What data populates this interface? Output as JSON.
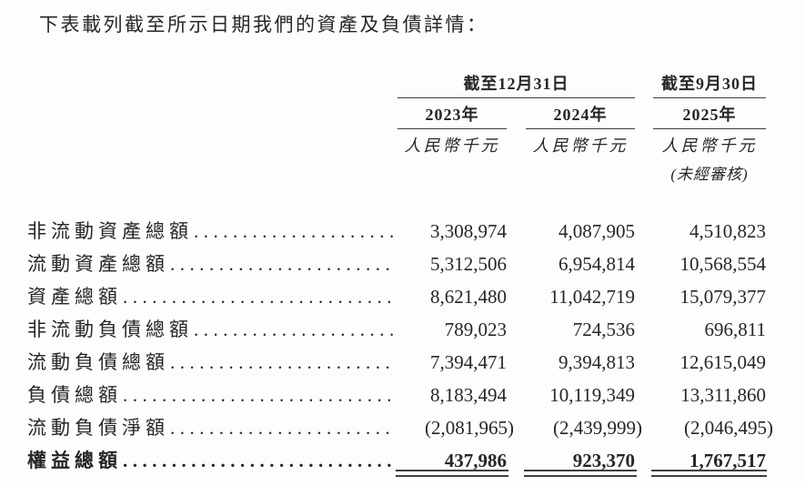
{
  "page": {
    "background_color": "#fdfdfc",
    "text_color": "#292526",
    "rule_color": "#3f3b3c"
  },
  "intro": "下表載列截至所示日期我們的資產及負債詳情：",
  "table": {
    "col_groups": [
      {
        "label": "截至12月31日"
      },
      {
        "label": "截至9月30日"
      }
    ],
    "years": [
      "2023年",
      "2024年",
      "2025年"
    ],
    "unit_label": "人民幣千元",
    "unaudited_note": "(未經審核)",
    "leader_dots": "......................................................................",
    "rows": [
      {
        "label": "非流動資產總額",
        "values": [
          "3,308,974",
          "4,087,905",
          "4,510,823"
        ]
      },
      {
        "label": "流動資產總額",
        "values": [
          "5,312,506",
          "6,954,814",
          "10,568,554"
        ]
      },
      {
        "label": "資產總額",
        "values": [
          "8,621,480",
          "11,042,719",
          "15,079,377"
        ]
      },
      {
        "label": "非流動負債總額",
        "values": [
          "789,023",
          "724,536",
          "696,811"
        ]
      },
      {
        "label": "流動負債總額",
        "values": [
          "7,394,471",
          "9,394,813",
          "12,615,049"
        ]
      },
      {
        "label": "負債總額",
        "values": [
          "8,183,494",
          "10,119,349",
          "13,311,860"
        ]
      },
      {
        "label": "流動負債淨額",
        "values": [
          "(2,081,965)",
          "(2,439,999)",
          "(2,046,495)"
        ]
      },
      {
        "label": "權益總額",
        "values": [
          "437,986",
          "923,370",
          "1,767,517"
        ],
        "bold": true
      }
    ]
  }
}
